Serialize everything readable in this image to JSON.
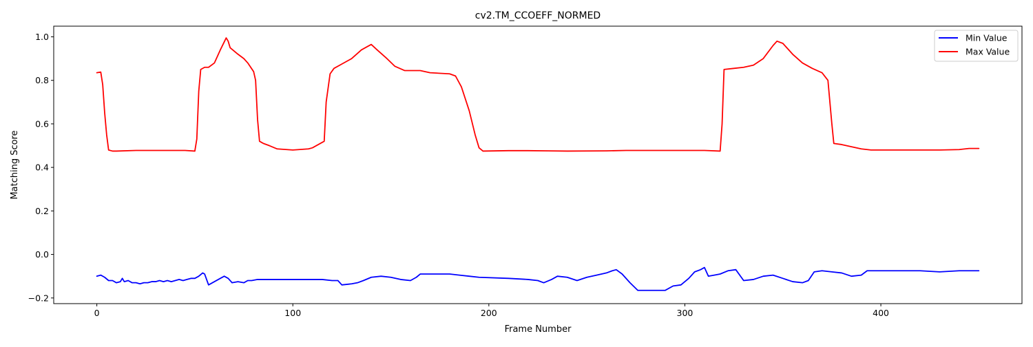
{
  "chart_data": {
    "type": "line",
    "title": "cv2.TM_CCOEFF_NORMED",
    "xlabel": "Frame Number",
    "ylabel": "Matching Score",
    "xlim": [
      -22,
      472
    ],
    "ylim": [
      -0.226,
      1.049
    ],
    "xticks": [
      0,
      100,
      200,
      300,
      400
    ],
    "yticks": [
      -0.2,
      0.0,
      0.2,
      0.4,
      0.6,
      0.8,
      1.0
    ],
    "xtick_labels": [
      "0",
      "100",
      "200",
      "300",
      "400"
    ],
    "ytick_labels": [
      "−0.2",
      "0.0",
      "0.2",
      "0.4",
      "0.6",
      "0.8",
      "1.0"
    ],
    "grid": false,
    "legend_position": "top-right",
    "series": [
      {
        "name": "Min Value",
        "color": "#0000ff",
        "points": [
          [
            0,
            -0.1
          ],
          [
            2,
            -0.095
          ],
          [
            4,
            -0.105
          ],
          [
            6,
            -0.12
          ],
          [
            8,
            -0.12
          ],
          [
            10,
            -0.13
          ],
          [
            12,
            -0.125
          ],
          [
            13,
            -0.11
          ],
          [
            14,
            -0.125
          ],
          [
            16,
            -0.12
          ],
          [
            18,
            -0.13
          ],
          [
            20,
            -0.13
          ],
          [
            22,
            -0.135
          ],
          [
            24,
            -0.13
          ],
          [
            26,
            -0.13
          ],
          [
            28,
            -0.125
          ],
          [
            30,
            -0.125
          ],
          [
            32,
            -0.12
          ],
          [
            34,
            -0.125
          ],
          [
            36,
            -0.12
          ],
          [
            38,
            -0.125
          ],
          [
            40,
            -0.12
          ],
          [
            42,
            -0.115
          ],
          [
            44,
            -0.12
          ],
          [
            46,
            -0.115
          ],
          [
            48,
            -0.11
          ],
          [
            50,
            -0.11
          ],
          [
            52,
            -0.1
          ],
          [
            54,
            -0.085
          ],
          [
            55,
            -0.09
          ],
          [
            57,
            -0.14
          ],
          [
            60,
            -0.125
          ],
          [
            63,
            -0.11
          ],
          [
            65,
            -0.1
          ],
          [
            67,
            -0.11
          ],
          [
            69,
            -0.13
          ],
          [
            72,
            -0.125
          ],
          [
            75,
            -0.13
          ],
          [
            77,
            -0.12
          ],
          [
            79,
            -0.12
          ],
          [
            82,
            -0.115
          ],
          [
            85,
            -0.115
          ],
          [
            90,
            -0.115
          ],
          [
            100,
            -0.115
          ],
          [
            110,
            -0.115
          ],
          [
            115,
            -0.115
          ],
          [
            120,
            -0.12
          ],
          [
            123,
            -0.12
          ],
          [
            125,
            -0.14
          ],
          [
            130,
            -0.135
          ],
          [
            133,
            -0.13
          ],
          [
            136,
            -0.12
          ],
          [
            140,
            -0.105
          ],
          [
            145,
            -0.1
          ],
          [
            150,
            -0.105
          ],
          [
            155,
            -0.115
          ],
          [
            160,
            -0.12
          ],
          [
            163,
            -0.105
          ],
          [
            165,
            -0.09
          ],
          [
            170,
            -0.09
          ],
          [
            180,
            -0.09
          ],
          [
            185,
            -0.095
          ],
          [
            190,
            -0.1
          ],
          [
            195,
            -0.105
          ],
          [
            210,
            -0.11
          ],
          [
            220,
            -0.115
          ],
          [
            225,
            -0.12
          ],
          [
            228,
            -0.13
          ],
          [
            232,
            -0.115
          ],
          [
            235,
            -0.1
          ],
          [
            240,
            -0.105
          ],
          [
            245,
            -0.12
          ],
          [
            250,
            -0.105
          ],
          [
            255,
            -0.095
          ],
          [
            260,
            -0.085
          ],
          [
            263,
            -0.075
          ],
          [
            265,
            -0.07
          ],
          [
            268,
            -0.09
          ],
          [
            272,
            -0.13
          ],
          [
            276,
            -0.165
          ],
          [
            280,
            -0.165
          ],
          [
            285,
            -0.165
          ],
          [
            290,
            -0.165
          ],
          [
            294,
            -0.145
          ],
          [
            298,
            -0.14
          ],
          [
            302,
            -0.11
          ],
          [
            305,
            -0.08
          ],
          [
            308,
            -0.07
          ],
          [
            310,
            -0.06
          ],
          [
            312,
            -0.1
          ],
          [
            315,
            -0.095
          ],
          [
            318,
            -0.09
          ],
          [
            322,
            -0.075
          ],
          [
            326,
            -0.07
          ],
          [
            330,
            -0.12
          ],
          [
            335,
            -0.115
          ],
          [
            340,
            -0.1
          ],
          [
            345,
            -0.095
          ],
          [
            350,
            -0.11
          ],
          [
            355,
            -0.125
          ],
          [
            360,
            -0.13
          ],
          [
            363,
            -0.12
          ],
          [
            366,
            -0.08
          ],
          [
            370,
            -0.075
          ],
          [
            375,
            -0.08
          ],
          [
            380,
            -0.085
          ],
          [
            385,
            -0.1
          ],
          [
            390,
            -0.095
          ],
          [
            393,
            -0.075
          ],
          [
            400,
            -0.075
          ],
          [
            410,
            -0.075
          ],
          [
            420,
            -0.075
          ],
          [
            430,
            -0.08
          ],
          [
            440,
            -0.075
          ],
          [
            445,
            -0.075
          ],
          [
            450,
            -0.075
          ]
        ]
      },
      {
        "name": "Max Value",
        "color": "#ff0000",
        "points": [
          [
            0,
            0.835
          ],
          [
            2,
            0.838
          ],
          [
            3,
            0.78
          ],
          [
            4,
            0.65
          ],
          [
            5,
            0.55
          ],
          [
            6,
            0.48
          ],
          [
            8,
            0.475
          ],
          [
            10,
            0.475
          ],
          [
            20,
            0.478
          ],
          [
            30,
            0.478
          ],
          [
            40,
            0.478
          ],
          [
            45,
            0.478
          ],
          [
            50,
            0.475
          ],
          [
            51,
            0.53
          ],
          [
            52,
            0.75
          ],
          [
            53,
            0.85
          ],
          [
            55,
            0.86
          ],
          [
            57,
            0.86
          ],
          [
            60,
            0.88
          ],
          [
            63,
            0.94
          ],
          [
            66,
            0.995
          ],
          [
            67,
            0.98
          ],
          [
            68,
            0.95
          ],
          [
            72,
            0.92
          ],
          [
            75,
            0.9
          ],
          [
            77,
            0.88
          ],
          [
            80,
            0.84
          ],
          [
            81,
            0.8
          ],
          [
            82,
            0.62
          ],
          [
            83,
            0.52
          ],
          [
            85,
            0.51
          ],
          [
            88,
            0.5
          ],
          [
            92,
            0.485
          ],
          [
            100,
            0.48
          ],
          [
            108,
            0.485
          ],
          [
            110,
            0.49
          ],
          [
            113,
            0.505
          ],
          [
            116,
            0.52
          ],
          [
            117,
            0.7
          ],
          [
            119,
            0.83
          ],
          [
            121,
            0.855
          ],
          [
            125,
            0.875
          ],
          [
            130,
            0.9
          ],
          [
            135,
            0.94
          ],
          [
            138,
            0.955
          ],
          [
            140,
            0.965
          ],
          [
            143,
            0.94
          ],
          [
            148,
            0.9
          ],
          [
            152,
            0.865
          ],
          [
            157,
            0.845
          ],
          [
            165,
            0.845
          ],
          [
            170,
            0.835
          ],
          [
            180,
            0.83
          ],
          [
            183,
            0.82
          ],
          [
            186,
            0.77
          ],
          [
            190,
            0.66
          ],
          [
            193,
            0.55
          ],
          [
            195,
            0.49
          ],
          [
            197,
            0.475
          ],
          [
            210,
            0.477
          ],
          [
            220,
            0.477
          ],
          [
            230,
            0.476
          ],
          [
            240,
            0.475
          ],
          [
            260,
            0.476
          ],
          [
            270,
            0.478
          ],
          [
            280,
            0.478
          ],
          [
            300,
            0.478
          ],
          [
            310,
            0.478
          ],
          [
            318,
            0.475
          ],
          [
            319,
            0.6
          ],
          [
            320,
            0.85
          ],
          [
            325,
            0.855
          ],
          [
            330,
            0.86
          ],
          [
            335,
            0.87
          ],
          [
            340,
            0.9
          ],
          [
            345,
            0.96
          ],
          [
            347,
            0.98
          ],
          [
            350,
            0.97
          ],
          [
            355,
            0.92
          ],
          [
            360,
            0.88
          ],
          [
            365,
            0.855
          ],
          [
            370,
            0.835
          ],
          [
            373,
            0.8
          ],
          [
            375,
            0.6
          ],
          [
            376,
            0.51
          ],
          [
            380,
            0.505
          ],
          [
            385,
            0.495
          ],
          [
            390,
            0.485
          ],
          [
            395,
            0.48
          ],
          [
            400,
            0.48
          ],
          [
            420,
            0.48
          ],
          [
            430,
            0.48
          ],
          [
            440,
            0.482
          ],
          [
            445,
            0.487
          ],
          [
            450,
            0.487
          ]
        ]
      }
    ]
  }
}
